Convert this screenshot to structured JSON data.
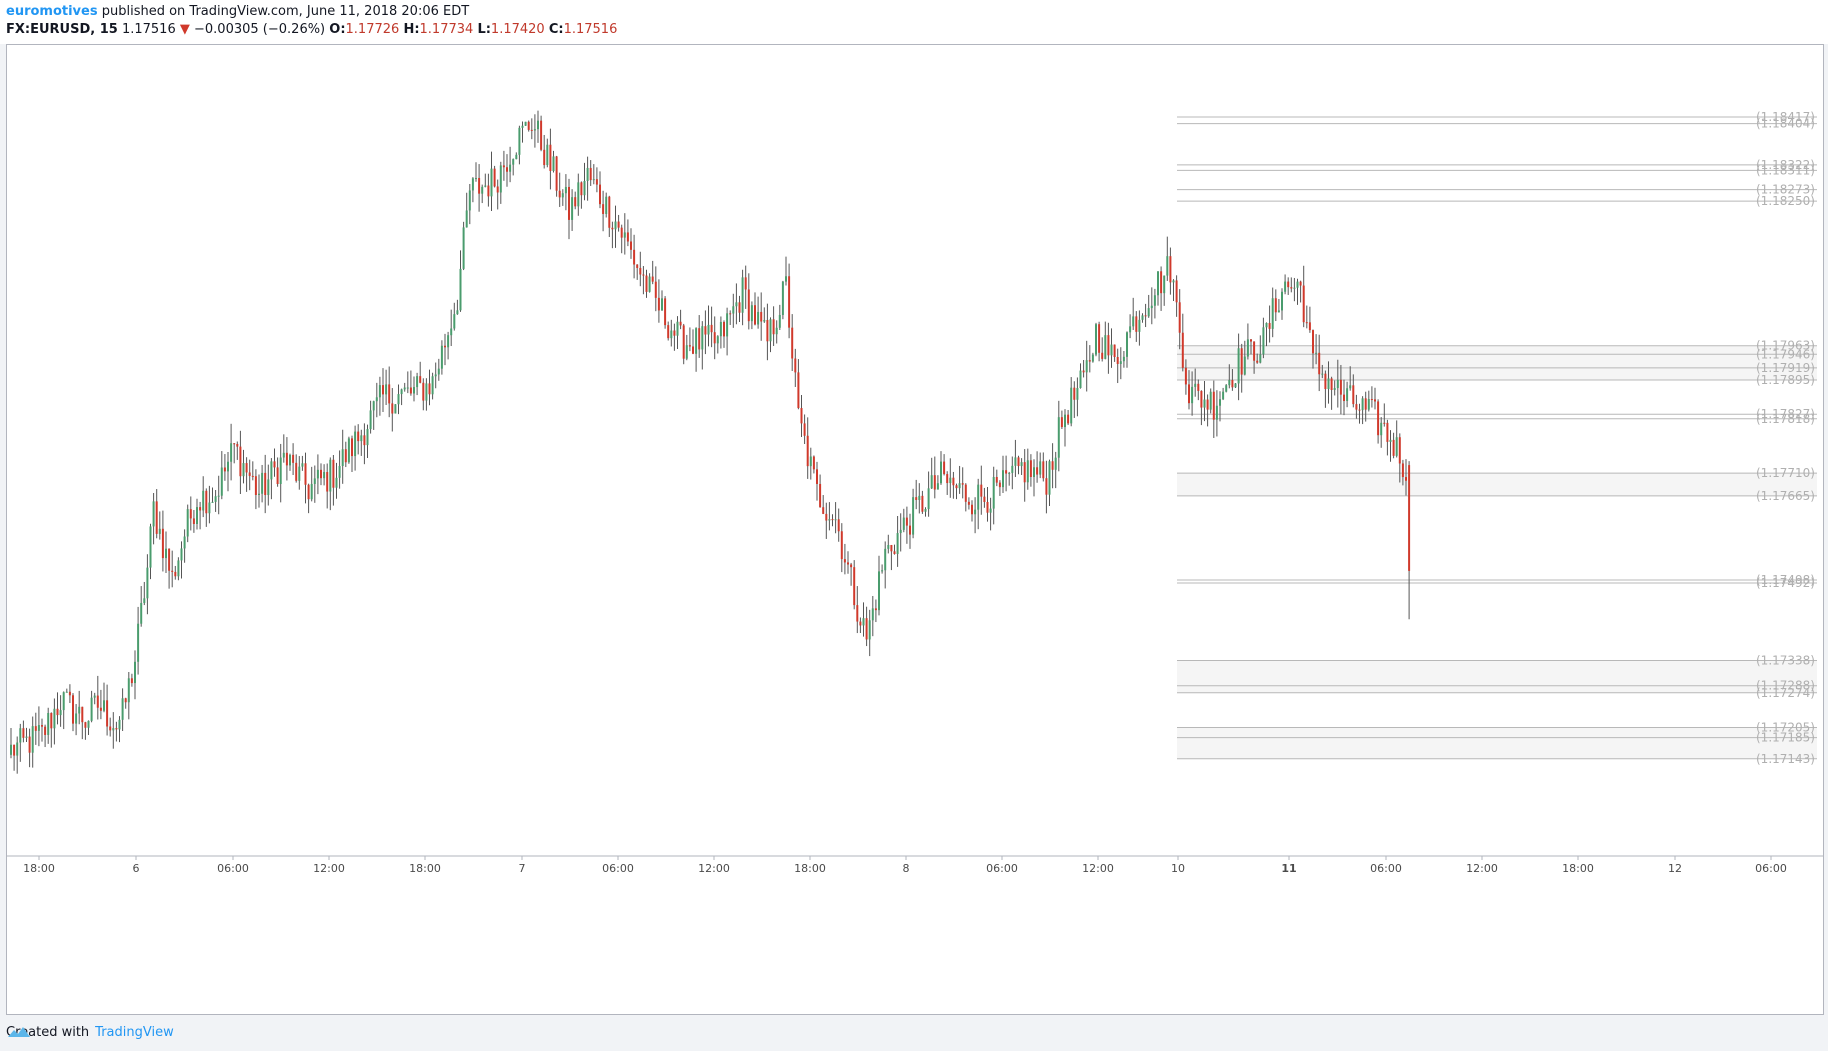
{
  "header": {
    "author": "euromotives",
    "published": "published on TradingView.com, June 11, 2018 20:06 EDT",
    "symbol": "FX:EURUSD, 15",
    "last": "1.17516",
    "arrow": "▼",
    "change": "−0.00305 (−0.26%)",
    "o_label": "O:",
    "o_value": "1.17726",
    "h_label": "H:",
    "h_value": "1.17734",
    "l_label": "L:",
    "l_value": "1.17420",
    "c_label": "C:",
    "c_value": "1.17516"
  },
  "footer": {
    "created_with": "Created with",
    "brand": "TradingView",
    "logo_icon": "tradingview-cloud-icon"
  },
  "colors": {
    "up": "#4a9c6d",
    "down": "#d0392b",
    "wick": "#555555",
    "level_line": "#b8b8b8",
    "level_label": "#b0b0b0",
    "zone_fill": "#f5f5f5",
    "accent": "#2196f3"
  },
  "chart_data": {
    "type": "candlestick",
    "title": "FX:EURUSD, 15",
    "x_tick_labels": [
      "18:00",
      "6",
      "06:00",
      "12:00",
      "18:00",
      "7",
      "06:00",
      "12:00",
      "18:00",
      "8",
      "06:00",
      "12:00",
      "10",
      "11",
      "06:00",
      "12:00",
      "18:00",
      "12",
      "06:00"
    ],
    "bold_x_ticks": [
      "11"
    ],
    "ylim": [
      1.1695,
      1.1856
    ],
    "price_levels": [
      1.18417,
      1.18404,
      1.18322,
      1.18311,
      1.18273,
      1.1825,
      1.17963,
      1.17946,
      1.17919,
      1.17895,
      1.17827,
      1.17818,
      1.1771,
      1.17665,
      1.17498,
      1.17492,
      1.17338,
      1.17288,
      1.17274,
      1.17205,
      1.17185,
      1.17143
    ],
    "level_labels": [
      "(1.18417)",
      "(1.18404)",
      "(1.18322)",
      "(1.18311)",
      "(1.18273)",
      "(1.18250)",
      "(1.17963)",
      "(1.17946)",
      "(1.17919)",
      "(1.17895)",
      "(1.17827)",
      "(1.17818)",
      "(1.17710)",
      "(1.17665)",
      "(1.17498)",
      "(1.17492)",
      "(1.17338)",
      "(1.17288)",
      "(1.17274)",
      "(1.17205)",
      "(1.17185)",
      "(1.17143)"
    ],
    "zones": [
      [
        1.17895,
        1.17963
      ],
      [
        1.17665,
        1.1771
      ],
      [
        1.17274,
        1.17338
      ],
      [
        1.17143,
        1.17205
      ]
    ],
    "path_keypoints": [
      [
        0,
        1.1716
      ],
      [
        10,
        1.1719
      ],
      [
        16,
        1.1726
      ],
      [
        24,
        1.1722
      ],
      [
        28,
        1.1725
      ],
      [
        34,
        1.1721
      ],
      [
        36,
        1.1723
      ],
      [
        40,
        1.1734
      ],
      [
        44,
        1.1752
      ],
      [
        46,
        1.1764
      ],
      [
        52,
        1.175
      ],
      [
        56,
        1.1759
      ],
      [
        60,
        1.1766
      ],
      [
        66,
        1.1767
      ],
      [
        72,
        1.1776
      ],
      [
        80,
        1.1767
      ],
      [
        88,
        1.1774
      ],
      [
        96,
        1.1768
      ],
      [
        104,
        1.1771
      ],
      [
        112,
        1.1778
      ],
      [
        120,
        1.1786
      ],
      [
        130,
        1.1787
      ],
      [
        136,
        1.1789
      ],
      [
        140,
        1.1797
      ],
      [
        144,
        1.1806
      ],
      [
        148,
        1.1827
      ],
      [
        156,
        1.1829
      ],
      [
        162,
        1.1836
      ],
      [
        168,
        1.1841
      ],
      [
        174,
        1.1832
      ],
      [
        180,
        1.1823
      ],
      [
        186,
        1.183
      ],
      [
        196,
        1.182
      ],
      [
        206,
        1.1807
      ],
      [
        216,
        1.1797
      ],
      [
        228,
        1.1797
      ],
      [
        236,
        1.1807
      ],
      [
        244,
        1.1797
      ],
      [
        250,
        1.1808
      ],
      [
        254,
        1.1782
      ],
      [
        260,
        1.1767
      ],
      [
        266,
        1.1762
      ],
      [
        272,
        1.1747
      ],
      [
        276,
        1.1738
      ],
      [
        282,
        1.1755
      ],
      [
        290,
        1.1762
      ],
      [
        300,
        1.177
      ],
      [
        310,
        1.1766
      ],
      [
        318,
        1.1767
      ],
      [
        326,
        1.1772
      ],
      [
        334,
        1.177
      ],
      [
        340,
        1.1783
      ],
      [
        346,
        1.1789
      ],
      [
        350,
        1.1799
      ],
      [
        356,
        1.1793
      ],
      [
        362,
        1.1801
      ],
      [
        368,
        1.1807
      ],
      [
        374,
        1.1812
      ],
      [
        380,
        1.1787
      ],
      [
        388,
        1.1785
      ],
      [
        396,
        1.1793
      ],
      [
        404,
        1.1797
      ],
      [
        410,
        1.1808
      ],
      [
        416,
        1.1808
      ],
      [
        420,
        1.1793
      ],
      [
        430,
        1.1786
      ],
      [
        440,
        1.1782
      ],
      [
        446,
        1.1777
      ],
      [
        450,
        1.1772
      ]
    ],
    "last_bar": {
      "o": 1.17726,
      "h": 1.17734,
      "l": 1.1742,
      "c": 1.17516
    }
  }
}
